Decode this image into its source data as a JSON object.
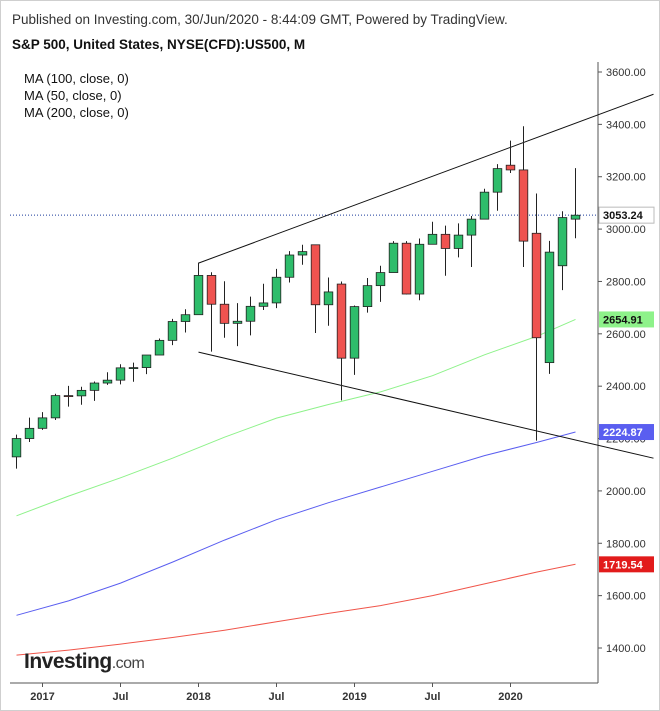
{
  "header": {
    "published": "Published on Investing.com, 30/Jun/2020 - 8:44:09 GMT, Powered by TradingView.",
    "title": "S&P 500, United States, NYSE(CFD):US500, M"
  },
  "legend": [
    "MA (100, close, 0)",
    "MA (50, close, 0)",
    "MA (200, close, 0)"
  ],
  "logo": {
    "main": "Investing",
    "suffix": ".com"
  },
  "colors": {
    "up": "#2ebd6b",
    "down": "#ef5350",
    "ma50": "#8ef28a",
    "ma100": "#5a5ef0",
    "ma200": "#f0554a",
    "last_line": "#1a3a9a",
    "trendline": "#111111"
  },
  "chart_data": {
    "type": "candlestick",
    "x_axis": {
      "ticks": [
        "2017",
        "Jul",
        "2018",
        "Jul",
        "2019",
        "Jul",
        "2020"
      ]
    },
    "y_axis": {
      "ylim": [
        1250,
        3650
      ],
      "ticks": [
        "3600.00",
        "3400.00",
        "3200.00",
        "3000.00",
        "2800.00",
        "2600.00",
        "2400.00",
        "2200.00",
        "2000.00",
        "1800.00",
        "1600.00",
        "1400.00"
      ]
    },
    "last_value_labels": [
      {
        "label": "3053.24",
        "value": 3053.24,
        "series": "price"
      },
      {
        "label": "2654.91",
        "value": 2654.91,
        "series": "ma50"
      },
      {
        "label": "2224.87",
        "value": 2224.87,
        "series": "ma100"
      },
      {
        "label": "1719.54",
        "value": 1719.54,
        "series": "ma200"
      }
    ],
    "candles": [
      {
        "date": "2016-11",
        "o": 2130,
        "h": 2215,
        "l": 2085,
        "c": 2200
      },
      {
        "date": "2016-12",
        "o": 2200,
        "h": 2280,
        "l": 2187,
        "c": 2239
      },
      {
        "date": "2017-01",
        "o": 2239,
        "h": 2301,
        "l": 2233,
        "c": 2279
      },
      {
        "date": "2017-02",
        "o": 2279,
        "h": 2371,
        "l": 2271,
        "c": 2364
      },
      {
        "date": "2017-03",
        "o": 2364,
        "h": 2401,
        "l": 2322,
        "c": 2363
      },
      {
        "date": "2017-04",
        "o": 2363,
        "h": 2398,
        "l": 2329,
        "c": 2384
      },
      {
        "date": "2017-05",
        "o": 2384,
        "h": 2418,
        "l": 2344,
        "c": 2412
      },
      {
        "date": "2017-06",
        "o": 2412,
        "h": 2453,
        "l": 2405,
        "c": 2423
      },
      {
        "date": "2017-07",
        "o": 2423,
        "h": 2484,
        "l": 2407,
        "c": 2470
      },
      {
        "date": "2017-08",
        "o": 2470,
        "h": 2490,
        "l": 2417,
        "c": 2471
      },
      {
        "date": "2017-09",
        "o": 2471,
        "h": 2519,
        "l": 2446,
        "c": 2519
      },
      {
        "date": "2017-10",
        "o": 2519,
        "h": 2582,
        "l": 2520,
        "c": 2575
      },
      {
        "date": "2017-11",
        "o": 2575,
        "h": 2657,
        "l": 2557,
        "c": 2647
      },
      {
        "date": "2017-12",
        "o": 2647,
        "h": 2694,
        "l": 2605,
        "c": 2673
      },
      {
        "date": "2018-01",
        "o": 2673,
        "h": 2872,
        "l": 2682,
        "c": 2823
      },
      {
        "date": "2018-02",
        "o": 2823,
        "h": 2835,
        "l": 2532,
        "c": 2713
      },
      {
        "date": "2018-03",
        "o": 2713,
        "h": 2801,
        "l": 2585,
        "c": 2640
      },
      {
        "date": "2018-04",
        "o": 2640,
        "h": 2717,
        "l": 2553,
        "c": 2648
      },
      {
        "date": "2018-05",
        "o": 2648,
        "h": 2742,
        "l": 2594,
        "c": 2705
      },
      {
        "date": "2018-06",
        "o": 2705,
        "h": 2791,
        "l": 2691,
        "c": 2718
      },
      {
        "date": "2018-07",
        "o": 2718,
        "h": 2848,
        "l": 2698,
        "c": 2816
      },
      {
        "date": "2018-08",
        "o": 2816,
        "h": 2916,
        "l": 2796,
        "c": 2901
      },
      {
        "date": "2018-09",
        "o": 2901,
        "h": 2940,
        "l": 2864,
        "c": 2914
      },
      {
        "date": "2018-10",
        "o": 2940,
        "h": 2940,
        "l": 2603,
        "c": 2711
      },
      {
        "date": "2018-11",
        "o": 2711,
        "h": 2815,
        "l": 2631,
        "c": 2760
      },
      {
        "date": "2018-12",
        "o": 2790,
        "h": 2800,
        "l": 2346,
        "c": 2507
      },
      {
        "date": "2019-01",
        "o": 2507,
        "h": 2708,
        "l": 2443,
        "c": 2704
      },
      {
        "date": "2019-02",
        "o": 2704,
        "h": 2813,
        "l": 2681,
        "c": 2784
      },
      {
        "date": "2019-03",
        "o": 2784,
        "h": 2860,
        "l": 2722,
        "c": 2834
      },
      {
        "date": "2019-04",
        "o": 2834,
        "h": 2954,
        "l": 2848,
        "c": 2946
      },
      {
        "date": "2019-05",
        "o": 2946,
        "h": 2954,
        "l": 2750,
        "c": 2752
      },
      {
        "date": "2019-06",
        "o": 2752,
        "h": 2964,
        "l": 2728,
        "c": 2942
      },
      {
        "date": "2019-07",
        "o": 2942,
        "h": 3028,
        "l": 2952,
        "c": 2980
      },
      {
        "date": "2019-08",
        "o": 2980,
        "h": 3013,
        "l": 2822,
        "c": 2926
      },
      {
        "date": "2019-09",
        "o": 2926,
        "h": 3022,
        "l": 2892,
        "c": 2977
      },
      {
        "date": "2019-10",
        "o": 2977,
        "h": 3050,
        "l": 2855,
        "c": 3038
      },
      {
        "date": "2019-11",
        "o": 3038,
        "h": 3154,
        "l": 3050,
        "c": 3141
      },
      {
        "date": "2019-12",
        "o": 3141,
        "h": 3248,
        "l": 3070,
        "c": 3231
      },
      {
        "date": "2020-01",
        "o": 3244,
        "h": 3338,
        "l": 3214,
        "c": 3226
      },
      {
        "date": "2020-02",
        "o": 3226,
        "h": 3393,
        "l": 2855,
        "c": 2954
      },
      {
        "date": "2020-03",
        "o": 2984,
        "h": 3136,
        "l": 2192,
        "c": 2585
      },
      {
        "date": "2020-04",
        "o": 2490,
        "h": 2955,
        "l": 2447,
        "c": 2912
      },
      {
        "date": "2020-05",
        "o": 2860,
        "h": 3068,
        "l": 2767,
        "c": 3044
      },
      {
        "date": "2020-06",
        "o": 3038,
        "h": 3233,
        "l": 2965,
        "c": 3053
      }
    ],
    "ma50": [
      [
        "2016-11",
        1905
      ],
      [
        "2017-03",
        1980
      ],
      [
        "2017-07",
        2050
      ],
      [
        "2017-11",
        2125
      ],
      [
        "2018-03",
        2205
      ],
      [
        "2018-07",
        2278
      ],
      [
        "2018-11",
        2330
      ],
      [
        "2019-03",
        2378
      ],
      [
        "2019-07",
        2440
      ],
      [
        "2019-11",
        2520
      ],
      [
        "2020-03",
        2590
      ],
      [
        "2020-06",
        2655
      ]
    ],
    "ma100": [
      [
        "2016-11",
        1525
      ],
      [
        "2017-03",
        1580
      ],
      [
        "2017-07",
        1648
      ],
      [
        "2017-11",
        1728
      ],
      [
        "2018-03",
        1812
      ],
      [
        "2018-07",
        1890
      ],
      [
        "2018-11",
        1955
      ],
      [
        "2019-03",
        2015
      ],
      [
        "2019-07",
        2075
      ],
      [
        "2019-11",
        2135
      ],
      [
        "2020-03",
        2185
      ],
      [
        "2020-06",
        2225
      ]
    ],
    "ma200": [
      [
        "2016-11",
        1373
      ],
      [
        "2017-03",
        1392
      ],
      [
        "2017-07",
        1415
      ],
      [
        "2017-11",
        1440
      ],
      [
        "2018-03",
        1468
      ],
      [
        "2018-07",
        1500
      ],
      [
        "2018-11",
        1532
      ],
      [
        "2019-03",
        1562
      ],
      [
        "2019-07",
        1600
      ],
      [
        "2019-11",
        1645
      ],
      [
        "2020-03",
        1690
      ],
      [
        "2020-06",
        1720
      ]
    ],
    "trendlines": [
      {
        "from": [
          "2018-01",
          2870
        ],
        "to": [
          "2020-12",
          3515
        ]
      },
      {
        "from": [
          "2018-01",
          2530
        ],
        "to": [
          "2020-12",
          2125
        ]
      }
    ]
  }
}
